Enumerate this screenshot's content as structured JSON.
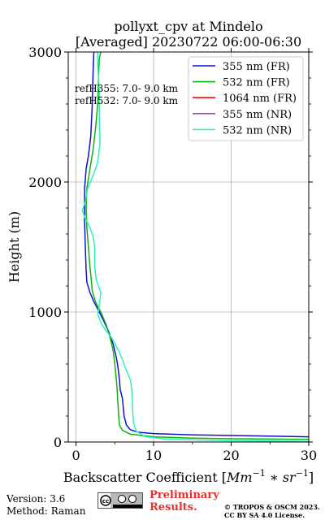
{
  "title": {
    "line1": "pollyxt_cpv at Mindelo",
    "line2": "[Averaged] 20230722 06:00-06:30"
  },
  "ref_text": {
    "line1": "refH355:  7.0- 9.0 km",
    "line2": "refH532:  7.0- 9.0 km"
  },
  "footer": {
    "version": "Version: 3.6",
    "method": "Method: Raman",
    "preliminary_line1": "Preliminary",
    "preliminary_line2": "Results.",
    "copyright_line1": "© TROPOS & OSCM 2023.",
    "copyright_line2": "CC BY SA 4.0 License."
  },
  "chart_data": {
    "type": "line",
    "title": "pollyxt_cpv at Mindelo [Averaged] 20230722 06:00-06:30",
    "xlabel": "Backscatter Coefficient [Mm^-1 * sr^-1]",
    "ylabel": "Height (m)",
    "xlim": [
      -1,
      30
    ],
    "ylim": [
      0,
      3000
    ],
    "xticks": [
      0,
      10,
      20,
      30
    ],
    "yticks": [
      0,
      1000,
      2000,
      3000
    ],
    "grid": true,
    "legend_position": "top-right",
    "series": [
      {
        "name": "355 nm (FR)",
        "color": "#1010d0",
        "points": [
          [
            30,
            40
          ],
          [
            25,
            45
          ],
          [
            20,
            50
          ],
          [
            15,
            55
          ],
          [
            10,
            65
          ],
          [
            8,
            75
          ],
          [
            7,
            95
          ],
          [
            6.5,
            130
          ],
          [
            6.2,
            200
          ],
          [
            6,
            330
          ],
          [
            5.8,
            380
          ],
          [
            5.7,
            400
          ],
          [
            5.6,
            480
          ],
          [
            5.4,
            580
          ],
          [
            5.2,
            650
          ],
          [
            4.8,
            750
          ],
          [
            4.2,
            850
          ],
          [
            3.5,
            940
          ],
          [
            3,
            1000
          ],
          [
            2.3,
            1080
          ],
          [
            1.8,
            1150
          ],
          [
            1.4,
            1230
          ],
          [
            1.3,
            1320
          ],
          [
            1.2,
            1500
          ],
          [
            1.1,
            1700
          ],
          [
            1.1,
            1950
          ],
          [
            1.3,
            2100
          ],
          [
            1.6,
            2200
          ],
          [
            1.9,
            2350
          ],
          [
            2.1,
            2600
          ],
          [
            2.2,
            2850
          ],
          [
            2.3,
            3000
          ]
        ]
      },
      {
        "name": "532 nm (FR)",
        "color": "#10b010",
        "points": [
          [
            30,
            20
          ],
          [
            20,
            25
          ],
          [
            15,
            30
          ],
          [
            10,
            40
          ],
          [
            7,
            60
          ],
          [
            6,
            90
          ],
          [
            5.6,
            130
          ],
          [
            5.5,
            200
          ],
          [
            5.4,
            300
          ],
          [
            5.3,
            400
          ],
          [
            5.2,
            480
          ],
          [
            5,
            600
          ],
          [
            4.8,
            700
          ],
          [
            4.4,
            800
          ],
          [
            3.9,
            900
          ],
          [
            3.2,
            1000
          ],
          [
            2.5,
            1080
          ],
          [
            2.1,
            1160
          ],
          [
            2,
            1230
          ],
          [
            1.8,
            1350
          ],
          [
            1.6,
            1500
          ],
          [
            1.4,
            1650
          ],
          [
            1.3,
            1800
          ],
          [
            1.4,
            1950
          ],
          [
            1.8,
            2100
          ],
          [
            2.2,
            2250
          ],
          [
            2.5,
            2400
          ],
          [
            2.8,
            2600
          ],
          [
            2.9,
            2800
          ],
          [
            3,
            2950
          ],
          [
            3.2,
            3000
          ]
        ]
      },
      {
        "name": "1064 nm (FR)",
        "color": "#e01010",
        "points": []
      },
      {
        "name": "355 nm (NR)",
        "color": "#a040e0",
        "points": []
      },
      {
        "name": "532 nm (NR)",
        "color": "#30f0c0",
        "points": [
          [
            30,
            5
          ],
          [
            20,
            10
          ],
          [
            12,
            20
          ],
          [
            9,
            40
          ],
          [
            7.8,
            80
          ],
          [
            7.4,
            150
          ],
          [
            7.3,
            250
          ],
          [
            7.2,
            400
          ],
          [
            7,
            480
          ],
          [
            6.5,
            550
          ],
          [
            6,
            630
          ],
          [
            5.5,
            700
          ],
          [
            5,
            760
          ],
          [
            4.5,
            810
          ],
          [
            3.8,
            860
          ],
          [
            3.2,
            920
          ],
          [
            2.8,
            980
          ],
          [
            3,
            1050
          ],
          [
            3.2,
            1150
          ],
          [
            2.6,
            1250
          ],
          [
            2.4,
            1350
          ],
          [
            2.4,
            1500
          ],
          [
            2.2,
            1580
          ],
          [
            1.8,
            1650
          ],
          [
            1.2,
            1720
          ],
          [
            0.8,
            1780
          ],
          [
            1.2,
            1850
          ],
          [
            1.5,
            1950
          ],
          [
            2.2,
            2050
          ],
          [
            2.8,
            2150
          ],
          [
            3.1,
            2300
          ],
          [
            3,
            2500
          ],
          [
            3,
            2700
          ],
          [
            2.8,
            2900
          ],
          [
            2.8,
            3000
          ]
        ]
      }
    ]
  }
}
